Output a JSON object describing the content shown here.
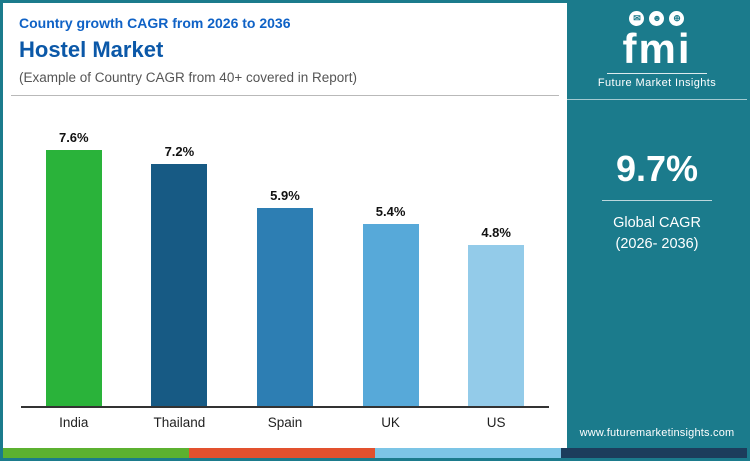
{
  "header": {
    "eyebrow": "Country growth CAGR from 2026 to 2036",
    "title": "Hostel Market",
    "subtitle": "(Example of Country CAGR from 40+ covered in Report)"
  },
  "chart_data": {
    "type": "bar",
    "title": "Hostel Market — Country growth CAGR from 2026 to 2036",
    "categories": [
      "India",
      "Thailand",
      "Spain",
      "UK",
      "US"
    ],
    "values": [
      7.6,
      7.2,
      5.9,
      5.4,
      4.8
    ],
    "value_labels": [
      "7.6%",
      "7.2%",
      "5.9%",
      "5.4%",
      "4.8%"
    ],
    "colors": [
      "#2ab33a",
      "#175a84",
      "#2d7eb3",
      "#57a9d9",
      "#93cbe9"
    ],
    "xlabel": "",
    "ylabel": "",
    "ylim": [
      0,
      8
    ],
    "grid": false,
    "legend": false
  },
  "sidebar": {
    "bg": "#1b7b8c",
    "logo_text": "fmi",
    "icons": [
      "envelope-icon",
      "person-icon",
      "globe-icon"
    ],
    "icon_glyphs": [
      "✉",
      "☻",
      "⊕"
    ],
    "brand": "Future Market Insights",
    "stat_value": "9.7%",
    "stat_label_line1": "Global CAGR",
    "stat_label_line2": "(2026- 2036)",
    "website": "www.futuremarketinsights.com"
  },
  "footer_strip_colors": [
    "#5cb130",
    "#e2512e",
    "#7cc5e6",
    "#1c3d5c"
  ]
}
